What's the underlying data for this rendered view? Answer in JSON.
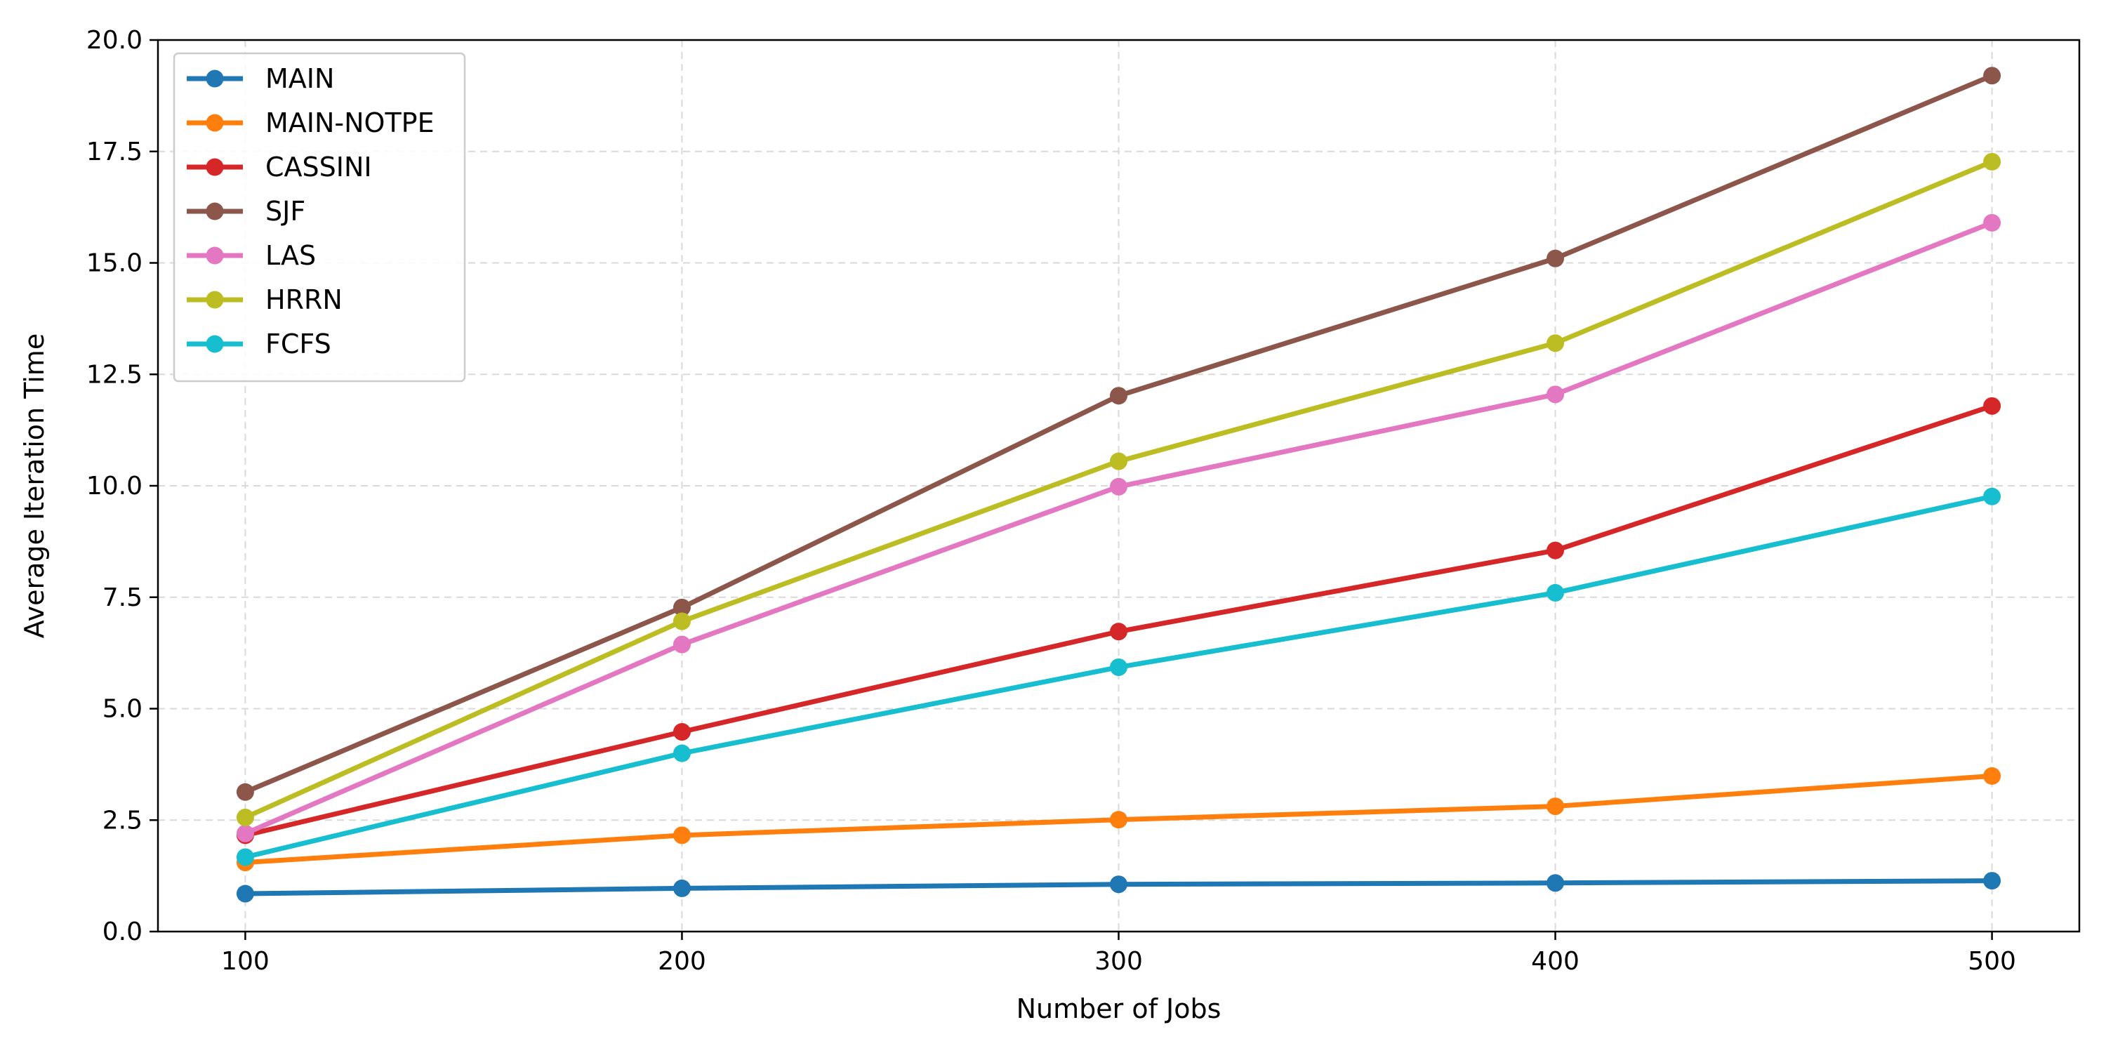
{
  "chart_data": {
    "type": "line",
    "xlabel": "Number of Jobs",
    "ylabel": "Average Iteration Time",
    "x": [
      100,
      200,
      300,
      400,
      500
    ],
    "xlim": [
      80,
      520
    ],
    "ylim": [
      0,
      20
    ],
    "xticks": [
      "100",
      "200",
      "300",
      "400",
      "500"
    ],
    "yticks": [
      "0.0",
      "2.5",
      "5.0",
      "7.5",
      "10.0",
      "12.5",
      "15.0",
      "17.5",
      "20.0"
    ],
    "grid": true,
    "legend_position": "top-left",
    "series": [
      {
        "name": "MAIN",
        "color": "#1f77b4",
        "values": [
          0.85,
          0.97,
          1.06,
          1.09,
          1.14
        ]
      },
      {
        "name": "MAIN-NOTPE",
        "color": "#ff7f0e",
        "values": [
          1.55,
          2.16,
          2.51,
          2.81,
          3.49
        ]
      },
      {
        "name": "CASSINI",
        "color": "#d62728",
        "values": [
          2.16,
          4.48,
          6.73,
          8.55,
          11.79
        ]
      },
      {
        "name": "SJF",
        "color": "#8c564b",
        "values": [
          3.13,
          7.27,
          12.02,
          15.1,
          19.2
        ]
      },
      {
        "name": "LAS",
        "color": "#e377c2",
        "values": [
          2.2,
          6.44,
          9.98,
          12.05,
          15.9
        ]
      },
      {
        "name": "HRRN",
        "color": "#bcbd22",
        "values": [
          2.56,
          6.96,
          10.55,
          13.2,
          17.27
        ]
      },
      {
        "name": "FCFS",
        "color": "#17becf",
        "values": [
          1.67,
          4.0,
          5.93,
          7.6,
          9.76
        ]
      }
    ]
  }
}
